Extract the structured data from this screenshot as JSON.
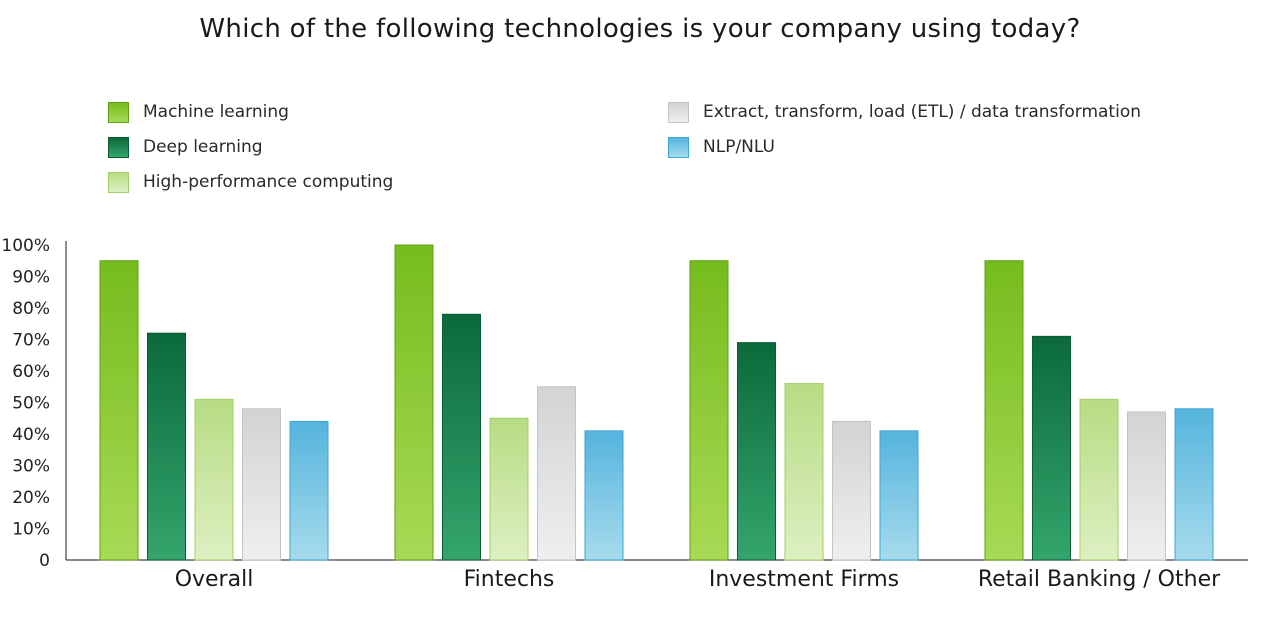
{
  "chart_data": {
    "type": "bar",
    "title": "Which of the following technologies is your company using today?",
    "categories": [
      "Overall",
      "Fintechs",
      "Investment Firms",
      "Retail Banking / Other"
    ],
    "series": [
      {
        "name": "Machine learning",
        "values": [
          95,
          100,
          95,
          95
        ],
        "color_top": "#76bc1e",
        "color_bottom": "#a8da55",
        "edge": "#5fa012"
      },
      {
        "name": "Deep learning",
        "values": [
          72,
          78,
          69,
          71
        ],
        "color_top": "#0b6a3a",
        "color_bottom": "#34a56d",
        "edge": "#0a5c33"
      },
      {
        "name": "High-performance computing",
        "values": [
          51,
          45,
          56,
          51
        ],
        "color_top": "#b7dc83",
        "color_bottom": "#ddf0c2",
        "edge": "#a3cf68"
      },
      {
        "name": "Extract, transform, load (ETL) / data transformation",
        "values": [
          48,
          55,
          44,
          47
        ],
        "color_top": "#d2d3d5",
        "color_bottom": "#eeeff0",
        "edge": "#c2c3c5"
      },
      {
        "name": "NLP/NLU",
        "values": [
          44,
          41,
          41,
          48
        ],
        "color_top": "#55b4dd",
        "color_bottom": "#a6dbec",
        "edge": "#3ea6d3"
      }
    ],
    "ylim": [
      0,
      100
    ],
    "yticks": [
      0,
      10,
      20,
      30,
      40,
      50,
      60,
      70,
      80,
      90,
      100
    ],
    "ytick_labels": [
      "0",
      "10%",
      "20%",
      "30%",
      "40%",
      "50%",
      "60%",
      "70%",
      "80%",
      "90%",
      "100%"
    ],
    "xlabel": "",
    "ylabel": "",
    "grid": false,
    "legend_position": "top"
  }
}
